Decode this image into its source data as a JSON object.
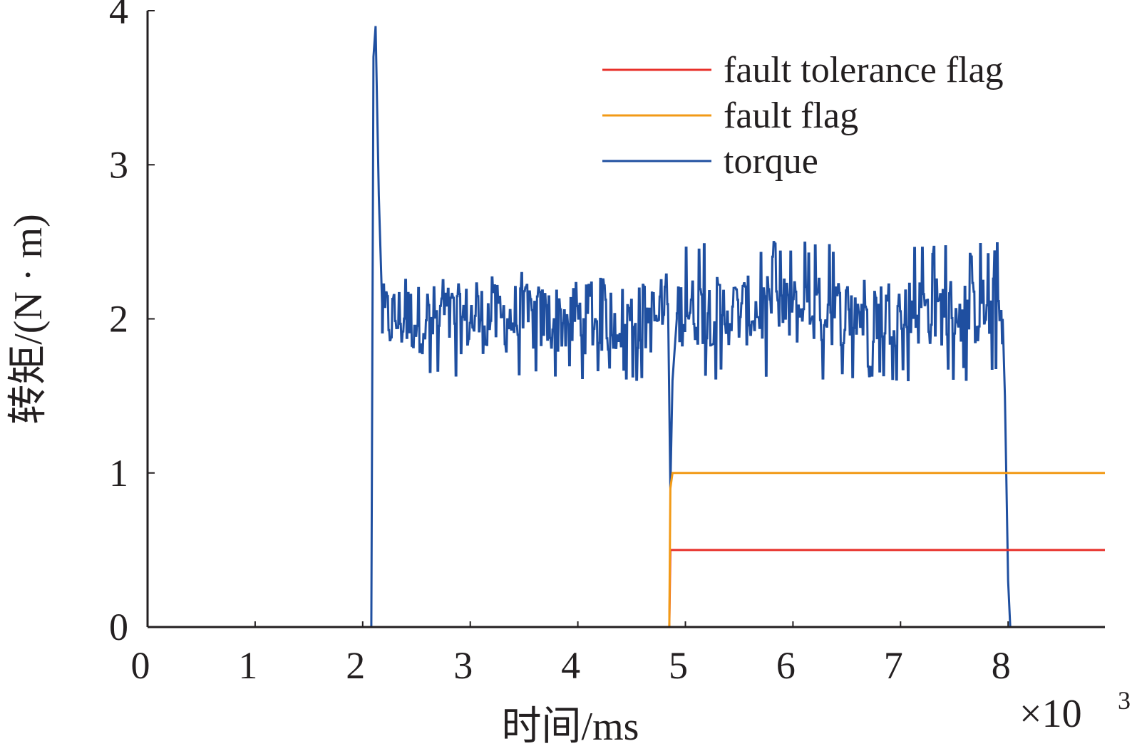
{
  "chart_data": {
    "type": "line",
    "xlabel": "时间/ms",
    "ylabel": "转矩/(N · m)",
    "x_multiplier": "×10",
    "x_multiplier_exp": "3",
    "xlim": [
      0,
      8.9
    ],
    "ylim": [
      0,
      4
    ],
    "x_ticks": [
      "0",
      "1",
      "2",
      "3",
      "4",
      "5",
      "6",
      "7",
      "8"
    ],
    "y_ticks": [
      "0",
      "1",
      "2",
      "3",
      "4"
    ],
    "legend_position": "top-right",
    "colors": {
      "fault_tolerance_flag": "#e8302a",
      "fault_flag": "#f29a16",
      "torque": "#1f4fa0",
      "axis": "#231f20"
    },
    "series": [
      {
        "name": "fault tolerance flag",
        "key": "fault_tolerance_flag",
        "x": [
          2.1,
          4.85,
          4.86,
          8.9
        ],
        "y": [
          0,
          0,
          0.5,
          0.5
        ]
      },
      {
        "name": "fault flag",
        "key": "fault_flag",
        "x": [
          2.1,
          4.85,
          4.86,
          4.88,
          8.9
        ],
        "y": [
          0,
          0,
          0.9,
          1.0,
          1.0
        ]
      },
      {
        "name": "torque",
        "key": "torque",
        "x": [
          0,
          2.08,
          2.1,
          2.12,
          2.15,
          2.18,
          4.84,
          4.86,
          4.88,
          4.92,
          7.95,
          7.97,
          8.0,
          8.02,
          8.9
        ],
        "y": [
          0,
          0,
          3.7,
          3.9,
          2.8,
          2.1,
          2.0,
          0.9,
          1.6,
          2.0,
          2.0,
          1.5,
          0.3,
          0,
          0
        ],
        "noise_segments": [
          {
            "from": 2.18,
            "to": 4.84,
            "mean": 2.0,
            "min": 1.6,
            "max": 2.3
          },
          {
            "from": 4.92,
            "to": 7.95,
            "mean": 2.05,
            "min": 1.6,
            "max": 2.5
          }
        ]
      }
    ]
  }
}
